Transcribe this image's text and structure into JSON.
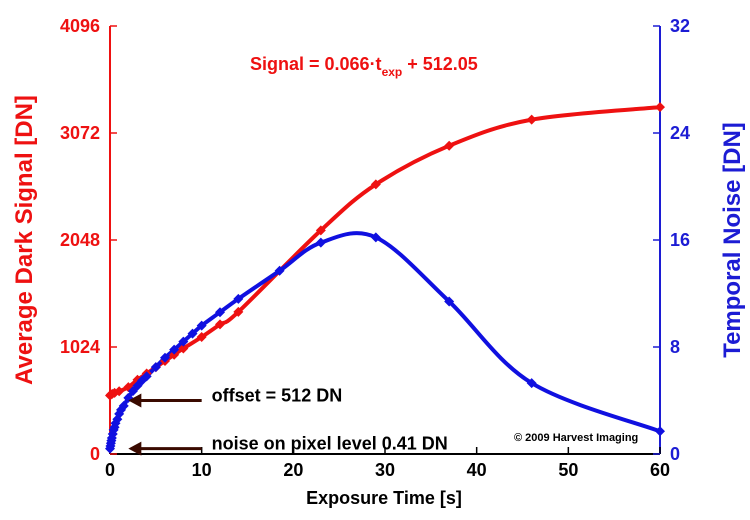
{
  "chart_data": {
    "type": "line",
    "xlabel": "Exposure Time [s]",
    "ylabel_left": "Average Dark Signal [DN]",
    "ylabel_right": "Temporal Noise [DN]",
    "xlim": [
      0,
      60
    ],
    "ylim_left": [
      0,
      4096
    ],
    "ylim_right": [
      0,
      32
    ],
    "x_ticks": [
      0,
      10,
      20,
      30,
      40,
      50,
      60
    ],
    "y_ticks_left": [
      0,
      1024,
      2048,
      3072,
      4096
    ],
    "y_ticks_right": [
      0,
      8,
      16,
      24,
      32
    ],
    "grid": false,
    "legend": "none",
    "equation": {
      "prefix": "Signal = 0.066·t",
      "subscript": "exp",
      "suffix": " + 512.05"
    },
    "annotations": [
      {
        "text": "offset = 512 DN",
        "arrow_y_left": 512,
        "arrow_x_from": 10,
        "arrow_x_to": 2
      },
      {
        "text": "noise on pixel level 0.41 DN",
        "arrow_y_left": 52,
        "arrow_x_from": 10,
        "arrow_x_to": 2
      }
    ],
    "copyright": "© 2009 Harvest Imaging",
    "colors": {
      "left_axis": "#ee1111",
      "right_axis": "#1c1cd4",
      "axis": "#000000",
      "signal": "#ee1111",
      "noise": "#1010e0",
      "annotation_arrow": "#3a0a00"
    },
    "series": [
      {
        "axis": "left",
        "color": "#ee1111",
        "x": [
          0,
          0.1,
          0.25,
          0.5,
          1,
          2,
          3,
          4,
          5,
          6,
          7,
          8,
          10,
          12,
          14,
          23,
          29,
          37,
          46,
          60
        ],
        "values": [
          560,
          570,
          575,
          585,
          600,
          640,
          710,
          770,
          830,
          890,
          950,
          1010,
          1120,
          1240,
          1360,
          2140,
          2580,
          2950,
          3200,
          3320
        ]
      },
      {
        "axis": "right",
        "color": "#1010e0",
        "x": [
          0,
          0.05,
          0.1,
          0.15,
          0.2,
          0.3,
          0.4,
          0.5,
          0.6,
          0.8,
          1,
          1.2,
          1.5,
          2,
          2.5,
          3,
          3.5,
          4,
          5,
          6,
          7,
          8,
          9,
          10,
          12,
          14,
          18.5,
          23,
          29,
          37,
          46,
          60
        ],
        "values": [
          0.4,
          0.6,
          0.8,
          1.0,
          1.2,
          1.5,
          1.8,
          2.0,
          2.3,
          2.6,
          3.0,
          3.3,
          3.6,
          4.2,
          4.7,
          5.1,
          5.5,
          5.8,
          6.5,
          7.2,
          7.8,
          8.4,
          9.0,
          9.6,
          10.6,
          11.6,
          13.7,
          15.8,
          16.2,
          11.4,
          5.3,
          1.7
        ]
      }
    ]
  }
}
